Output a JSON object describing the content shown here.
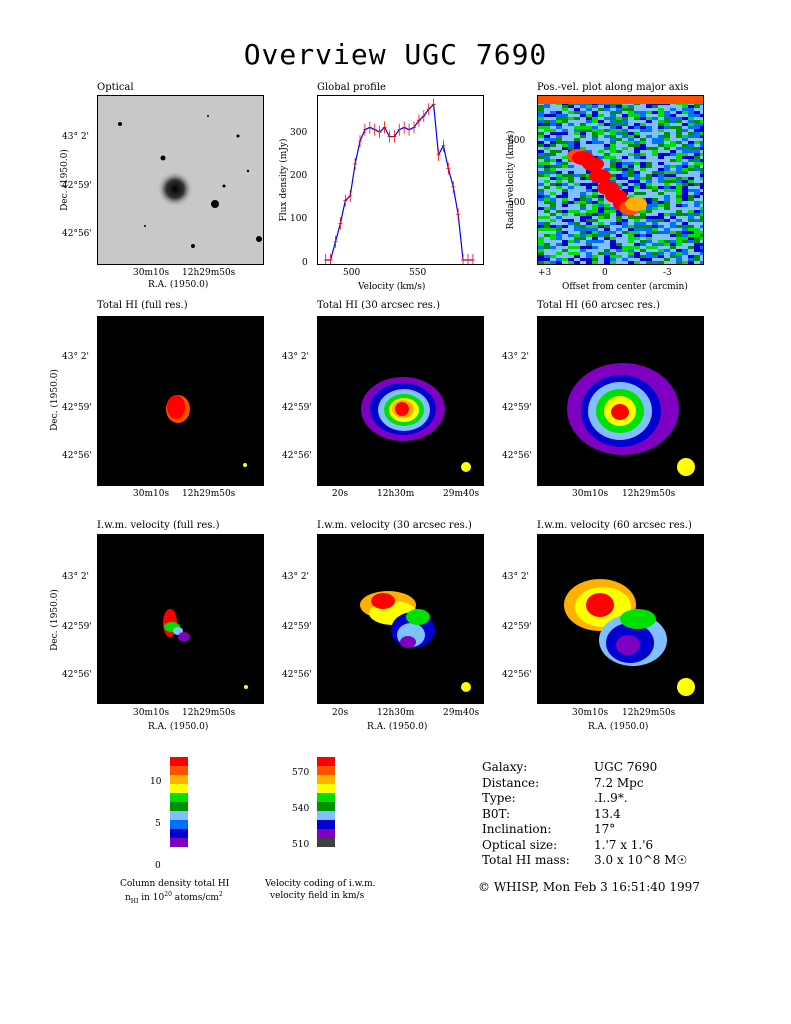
{
  "title": "Overview UGC 7690",
  "panels": {
    "optical": {
      "title": "Optical"
    },
    "global": {
      "title": "Global profile"
    },
    "pv": {
      "title": "Pos.-vel. plot along major axis"
    },
    "hi_full": {
      "title": "Total HI (full res.)"
    },
    "hi_30": {
      "title": "Total HI (30 arcsec res.)"
    },
    "hi_60": {
      "title": "Total HI (60 arcsec res.)"
    },
    "vel_full": {
      "title": "I.w.m. velocity (full res.)"
    },
    "vel_30": {
      "title": "I.w.m. velocity (30 arcsec res.)"
    },
    "vel_60": {
      "title": "I.w.m. velocity (60 arcsec res.)"
    }
  },
  "axes": {
    "dec_label": "Dec. (1950.0)",
    "ra_label": "R.A. (1950.0)",
    "dec_ticks": [
      "43° 2'",
      "42°59'",
      "42°56'"
    ],
    "ra_ticks_a": [
      "30m10s",
      "12h29m50s"
    ],
    "ra_ticks_b": [
      "20s",
      "12h30m",
      "29m40s"
    ],
    "flux_label": "Flux density (mJy)",
    "vel_label": "Velocity (km/s)",
    "rv_label": "Radial velocity (km/s)",
    "offset_label": "Offset from center (arcmin)"
  },
  "chart_data": [
    {
      "type": "line",
      "title": "Global profile",
      "xlabel": "Velocity (km/s)",
      "ylabel": "Flux density (mJy)",
      "xlim": [
        472,
        600
      ],
      "ylim": [
        0,
        350
      ],
      "xticks": [
        500,
        550
      ],
      "yticks": [
        0,
        100,
        200,
        300
      ],
      "x": [
        475,
        479,
        483,
        487,
        491,
        495,
        499,
        503,
        507,
        511,
        515,
        519,
        523,
        527,
        531,
        535,
        539,
        543,
        547,
        551,
        555,
        559,
        563,
        567,
        571,
        575,
        579,
        583,
        587,
        591,
        595
      ],
      "y": [
        0,
        0,
        40,
        80,
        130,
        140,
        210,
        260,
        285,
        290,
        285,
        280,
        290,
        270,
        270,
        285,
        290,
        285,
        290,
        305,
        315,
        330,
        340,
        230,
        250,
        200,
        160,
        100,
        0,
        0,
        0
      ],
      "series": [
        {
          "name": "",
          "color": "#0000ff"
        }
      ],
      "errors_color": "#ff0000"
    },
    {
      "type": "heatmap",
      "title": "Pos.-vel. plot along major axis",
      "xlabel": "Offset from center (arcmin)",
      "ylabel": "Radial velocity (km/s)",
      "xticks": [
        "+3",
        "0",
        "-3"
      ],
      "yticks": [
        500,
        600
      ]
    },
    {
      "type": "heatmap",
      "title": "Column density total HI",
      "colorbar_ticks": [
        0,
        5,
        10
      ],
      "colors": [
        "#7f00c0",
        "#0000d0",
        "#0070ff",
        "#80c0ff",
        "#009000",
        "#00e000",
        "#ffff00",
        "#ffb000",
        "#ff5000",
        "#ff0000"
      ]
    },
    {
      "type": "heatmap",
      "title": "Velocity coding of i.w.m. velocity field in km/s",
      "colorbar_ticks": [
        510,
        540,
        570
      ],
      "colors": [
        "#404040",
        "#7f00c0",
        "#0000d0",
        "#80c0ff",
        "#009000",
        "#00e000",
        "#ffff00",
        "#ffb000",
        "#ff5000",
        "#ff0000"
      ]
    }
  ],
  "colorbars": {
    "col_caption1": "Column density total HI",
    "col_caption2": "n",
    "col_caption2_sub": "HI",
    "col_caption2_rest": " in 10",
    "col_caption2_sup": "20",
    "col_caption2_tail": " atoms/cm",
    "col_caption2_sup2": "2",
    "vel_caption1": "Velocity coding of i.w.m.",
    "vel_caption2": "velocity field in km/s"
  },
  "info": {
    "rows": [
      {
        "label": "Galaxy:",
        "value": "UGC 7690"
      },
      {
        "label": "Distance:",
        "value": "7.2 Mpc"
      },
      {
        "label": "Type:",
        "value": ".I..9*."
      },
      {
        "label": "B0T:",
        "value": "13.4"
      },
      {
        "label": "Inclination:",
        "value": "17°"
      },
      {
        "label": "Optical size:",
        "value": "1.'7 x 1.'6"
      },
      {
        "label": "Total HI mass:",
        "value": "3.0 x 10^8 M☉"
      }
    ],
    "footer": "© WHISP, Mon Feb  3 16:51:40 1997"
  }
}
